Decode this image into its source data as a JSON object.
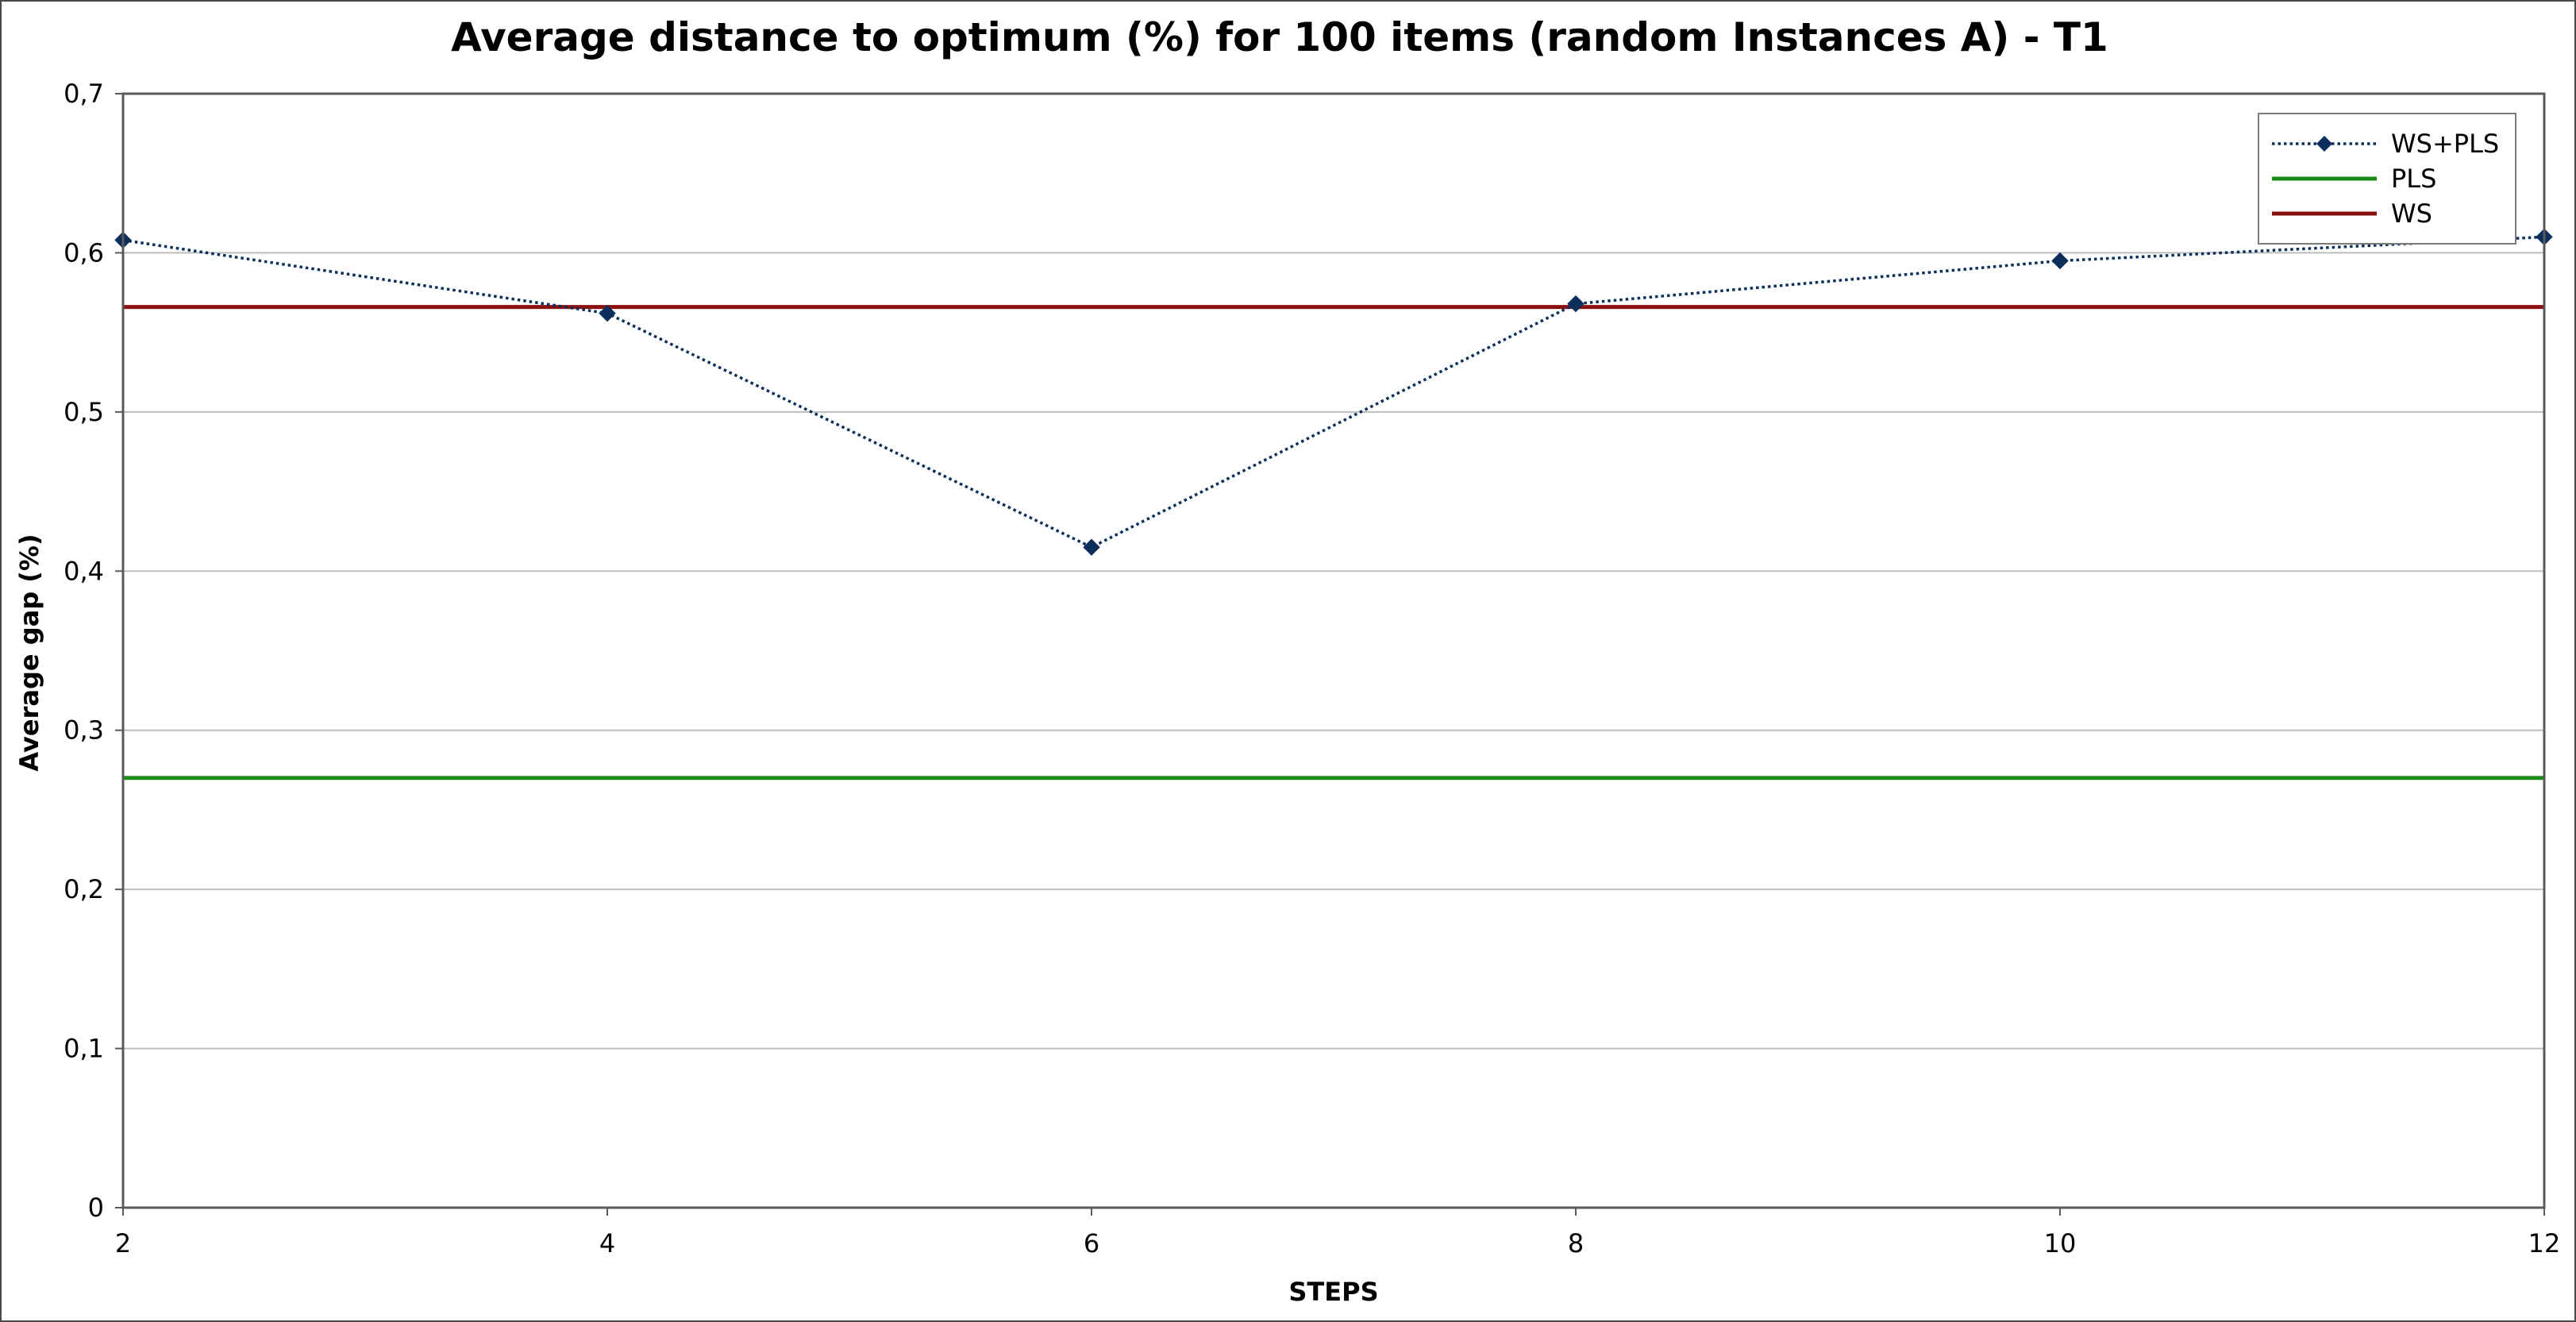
{
  "chart_data": {
    "type": "line",
    "title": "Average distance to optimum (%) for 100 items (random Instances A) - T1",
    "xlabel": "STEPS",
    "ylabel": "Average gap (%)",
    "x": [
      2,
      4,
      6,
      8,
      10,
      12
    ],
    "xlim": [
      2,
      12
    ],
    "ylim": [
      0,
      0.7
    ],
    "x_ticks": [
      "2",
      "4",
      "6",
      "8",
      "10",
      "12"
    ],
    "y_ticks": [
      "0",
      "0,1",
      "0,2",
      "0,3",
      "0,4",
      "0,5",
      "0,6",
      "0,7"
    ],
    "grid": "horizontal",
    "legend_position": "top-right",
    "series": [
      {
        "name": "WS+PLS",
        "style": "dotted-diamond",
        "color": "#0b2f5a",
        "values": [
          0.608,
          0.562,
          0.415,
          0.568,
          0.595,
          0.61
        ]
      },
      {
        "name": "PLS",
        "style": "constant",
        "color": "#1a8a1a",
        "values": [
          0.27,
          0.27,
          0.27,
          0.27,
          0.27,
          0.27
        ]
      },
      {
        "name": "WS",
        "style": "constant",
        "color": "#8b1010",
        "values": [
          0.566,
          0.566,
          0.566,
          0.566,
          0.566,
          0.566
        ]
      }
    ]
  }
}
